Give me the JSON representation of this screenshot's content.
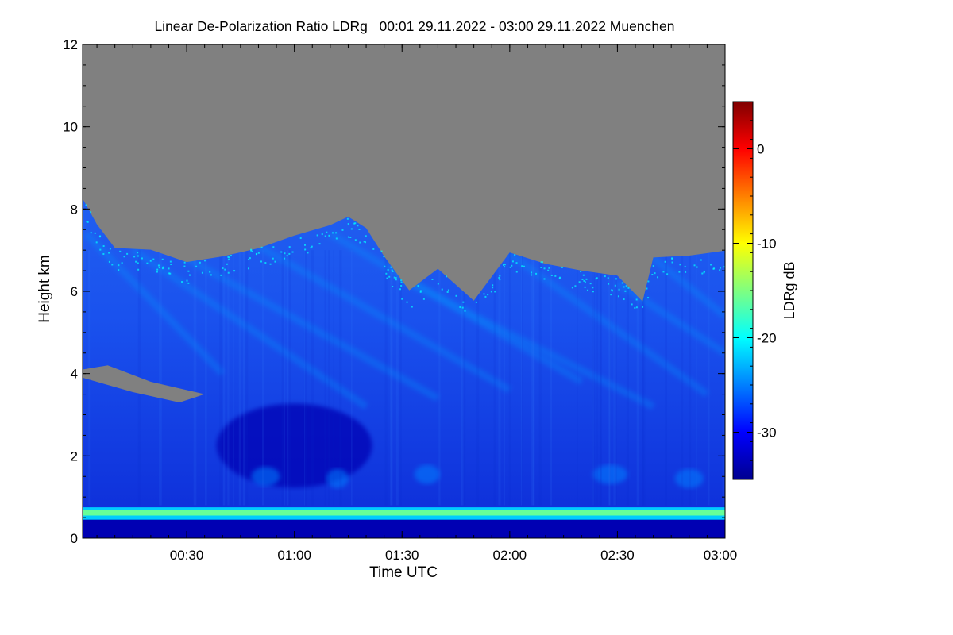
{
  "chart_data": {
    "type": "heatmap",
    "title": "Linear De-Polarization Ratio LDRg   00:01 29.11.2022 - 03:00 29.11.2022 Muenchen",
    "xlabel": "Time UTC",
    "ylabel": "Height km",
    "x_range_minutes": [
      1,
      180
    ],
    "x_ticks": [
      {
        "minute": 30,
        "label": "00:30"
      },
      {
        "minute": 60,
        "label": "01:00"
      },
      {
        "minute": 90,
        "label": "01:30"
      },
      {
        "minute": 120,
        "label": "02:00"
      },
      {
        "minute": 150,
        "label": "02:30"
      },
      {
        "minute": 180,
        "label": "03:00"
      }
    ],
    "y_range_km": [
      0,
      12
    ],
    "y_ticks": [
      {
        "value": 0,
        "label": "0"
      },
      {
        "value": 2,
        "label": "2"
      },
      {
        "value": 4,
        "label": "4"
      },
      {
        "value": 6,
        "label": "6"
      },
      {
        "value": 8,
        "label": "8"
      },
      {
        "value": 10,
        "label": "10"
      },
      {
        "value": 12,
        "label": "12"
      }
    ],
    "colorbar": {
      "label": "LDRg dB",
      "range": [
        -35,
        5
      ],
      "colormap": "jet",
      "ticks": [
        {
          "value": 0,
          "label": "0"
        },
        {
          "value": -10,
          "label": "-10"
        },
        {
          "value": -20,
          "label": "-20"
        },
        {
          "value": -30,
          "label": "-30"
        }
      ]
    },
    "no_data_color": "#808080",
    "signal_top_km": [
      [
        1,
        8.3
      ],
      [
        5,
        7.6
      ],
      [
        10,
        7.0
      ],
      [
        20,
        7.0
      ],
      [
        30,
        6.7
      ],
      [
        40,
        6.9
      ],
      [
        50,
        7.1
      ],
      [
        60,
        7.3
      ],
      [
        70,
        7.6
      ],
      [
        75,
        7.8
      ],
      [
        80,
        7.5
      ],
      [
        85,
        6.9
      ],
      [
        92,
        6.0
      ],
      [
        100,
        6.6
      ],
      [
        110,
        5.8
      ],
      [
        120,
        7.0
      ],
      [
        130,
        6.7
      ],
      [
        140,
        6.5
      ],
      [
        150,
        6.4
      ],
      [
        157,
        5.8
      ],
      [
        160,
        6.8
      ],
      [
        170,
        6.9
      ],
      [
        180,
        7.0
      ]
    ],
    "features": [
      {
        "name": "boundary layer high-LDR band",
        "height_km": [
          0.45,
          0.75
        ],
        "ldr_db": -16
      },
      {
        "name": "low-LDR layer below 0.5 km",
        "height_km": [
          0.0,
          0.5
        ],
        "ldr_db": -33
      },
      {
        "name": "no-signal patch",
        "time_min": [
          1,
          35
        ],
        "height_km": [
          3.3,
          4.2
        ]
      },
      {
        "name": "low-LDR region",
        "time_min": [
          45,
          75
        ],
        "height_km": [
          1.5,
          3.0
        ],
        "ldr_db": -33
      },
      {
        "name": "fall streaks",
        "ldr_db": -24
      },
      {
        "name": "cirrus top",
        "ldr_db": -20
      }
    ]
  }
}
